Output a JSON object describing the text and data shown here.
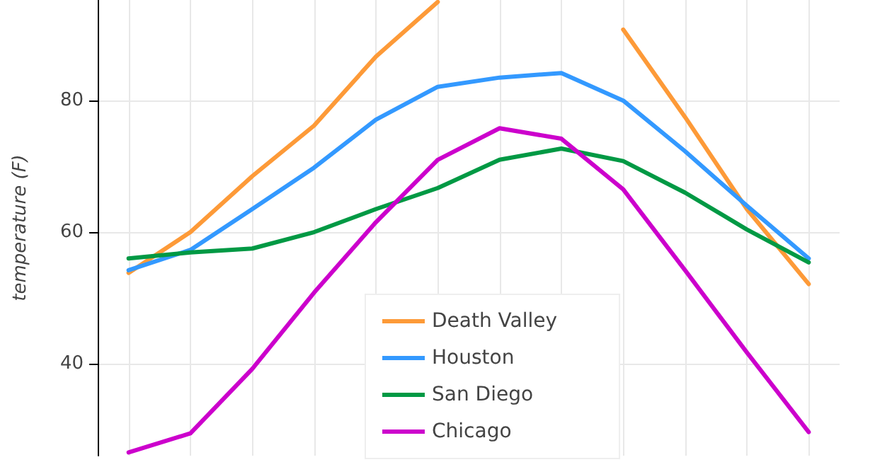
{
  "chart_data": {
    "type": "line",
    "ylabel": "temperature (F)",
    "categories": [
      null,
      null,
      null,
      null,
      null,
      null,
      null,
      null,
      null,
      null,
      null,
      null
    ],
    "ylim": [
      26,
      95.3
    ],
    "yticks": [
      40,
      60,
      80
    ],
    "series": [
      {
        "name": "Death Valley",
        "color": "#fd9a38",
        "values": [
          53.8,
          60,
          68.5,
          76.2,
          86.7,
          95,
          null,
          null,
          90.8,
          77.5,
          63.5,
          52.1
        ]
      },
      {
        "name": "Houston",
        "color": "#3399ff",
        "values": [
          54.2,
          57.3,
          63.5,
          69.8,
          77.1,
          82.1,
          83.5,
          84.2,
          80,
          72.3,
          64,
          56
        ]
      },
      {
        "name": "San Diego",
        "color": "#009944",
        "values": [
          56,
          56.9,
          57.5,
          60,
          63.5,
          66.7,
          71,
          72.7,
          70.8,
          66,
          60.4,
          55.4
        ]
      },
      {
        "name": "Chicago",
        "color": "#cc00cc",
        "values": [
          26.5,
          29.4,
          39.2,
          50.8,
          61.5,
          71,
          75.8,
          74.2,
          66.5,
          54.2,
          41.7,
          29.6
        ]
      }
    ],
    "grid": true,
    "legend": "bottom",
    "marker": "none",
    "line_style": "solid"
  }
}
